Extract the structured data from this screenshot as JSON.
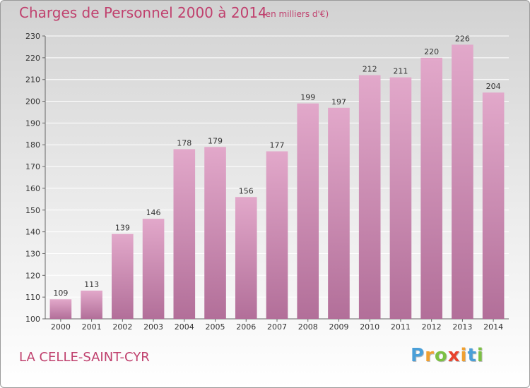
{
  "title": "Charges de Personnel 2000 à 2014",
  "subtitle": "(en milliers d'€)",
  "commune": "LA CELLE-SAINT-CYR",
  "brand": {
    "letters": [
      "P",
      "r",
      "o",
      "x",
      "i",
      "t",
      "i"
    ],
    "colors": [
      "#4a9fd8",
      "#f0a030",
      "#7cc043",
      "#e8432e",
      "#f0a030",
      "#4a9fd8",
      "#7cc043"
    ]
  },
  "colors": {
    "bar_top": "#e2a8ca",
    "bar_bottom": "#b26f99",
    "accent": "#c0416e"
  },
  "chart_data": {
    "type": "bar",
    "title": "Charges de Personnel 2000 à 2014",
    "subtitle": "(en milliers d'€)",
    "categories": [
      "2000",
      "2001",
      "2002",
      "2003",
      "2004",
      "2005",
      "2006",
      "2007",
      "2008",
      "2009",
      "2010",
      "2011",
      "2012",
      "2013",
      "2014"
    ],
    "values": [
      109,
      113,
      139,
      146,
      178,
      179,
      156,
      177,
      199,
      197,
      212,
      211,
      220,
      226,
      204
    ],
    "ylim": [
      100,
      230
    ],
    "yticks": [
      100,
      110,
      120,
      130,
      140,
      150,
      160,
      170,
      180,
      190,
      200,
      210,
      220,
      230
    ],
    "grid": true,
    "data_labels": true
  }
}
